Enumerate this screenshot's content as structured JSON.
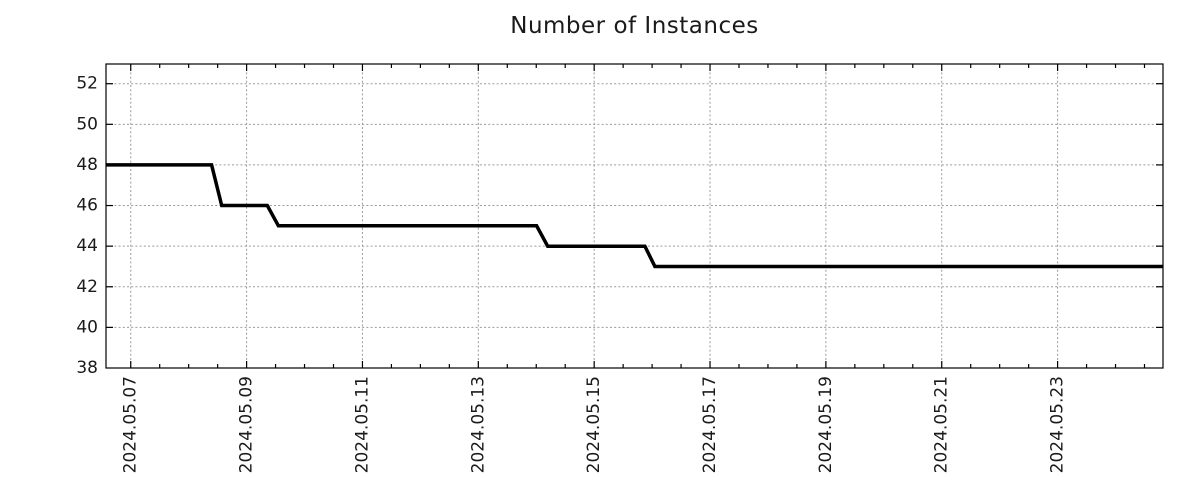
{
  "chart_data": {
    "type": "line",
    "subtype": "step-time-series",
    "title": "Number of Instances",
    "legend": "none",
    "grid": true,
    "colors": {
      "line": "#000000",
      "grid": "#9a9a9a",
      "frame": "#000000",
      "text": "#1a1a1a",
      "background": "#ffffff"
    },
    "x_axis": {
      "kind": "time",
      "range_min": "2024-05-06 13:45",
      "range_max": "2024-05-24 19:40",
      "minor_tick_hours": 12,
      "label_rotation_deg": -90,
      "major_ticks": [
        {
          "date": "2024-05-07 00:00",
          "label": "2024.05.07"
        },
        {
          "date": "2024-05-09 00:00",
          "label": "2024.05.09"
        },
        {
          "date": "2024-05-11 00:00",
          "label": "2024.05.11"
        },
        {
          "date": "2024-05-13 00:00",
          "label": "2024.05.13"
        },
        {
          "date": "2024-05-15 00:00",
          "label": "2024.05.15"
        },
        {
          "date": "2024-05-17 00:00",
          "label": "2024.05.17"
        },
        {
          "date": "2024-05-19 00:00",
          "label": "2024.05.19"
        },
        {
          "date": "2024-05-21 00:00",
          "label": "2024.05.21"
        },
        {
          "date": "2024-05-23 00:00",
          "label": "2024.05.23"
        }
      ]
    },
    "y_axis": {
      "range_min": 38,
      "range_max": 52.97,
      "ticks": [
        38,
        40,
        42,
        44,
        46,
        48,
        50,
        52
      ]
    },
    "series": [
      {
        "name": "instances",
        "points": [
          [
            "2024-05-06 13:45",
            48
          ],
          [
            "2024-05-08 09:30",
            48
          ],
          [
            "2024-05-08 13:40",
            46
          ],
          [
            "2024-05-09 08:35",
            46
          ],
          [
            "2024-05-09 13:10",
            45
          ],
          [
            "2024-05-14 00:10",
            45
          ],
          [
            "2024-05-14 04:45",
            44
          ],
          [
            "2024-05-15 21:00",
            44
          ],
          [
            "2024-05-16 01:10",
            43
          ],
          [
            "2024-05-24 19:40",
            43
          ]
        ]
      }
    ]
  }
}
